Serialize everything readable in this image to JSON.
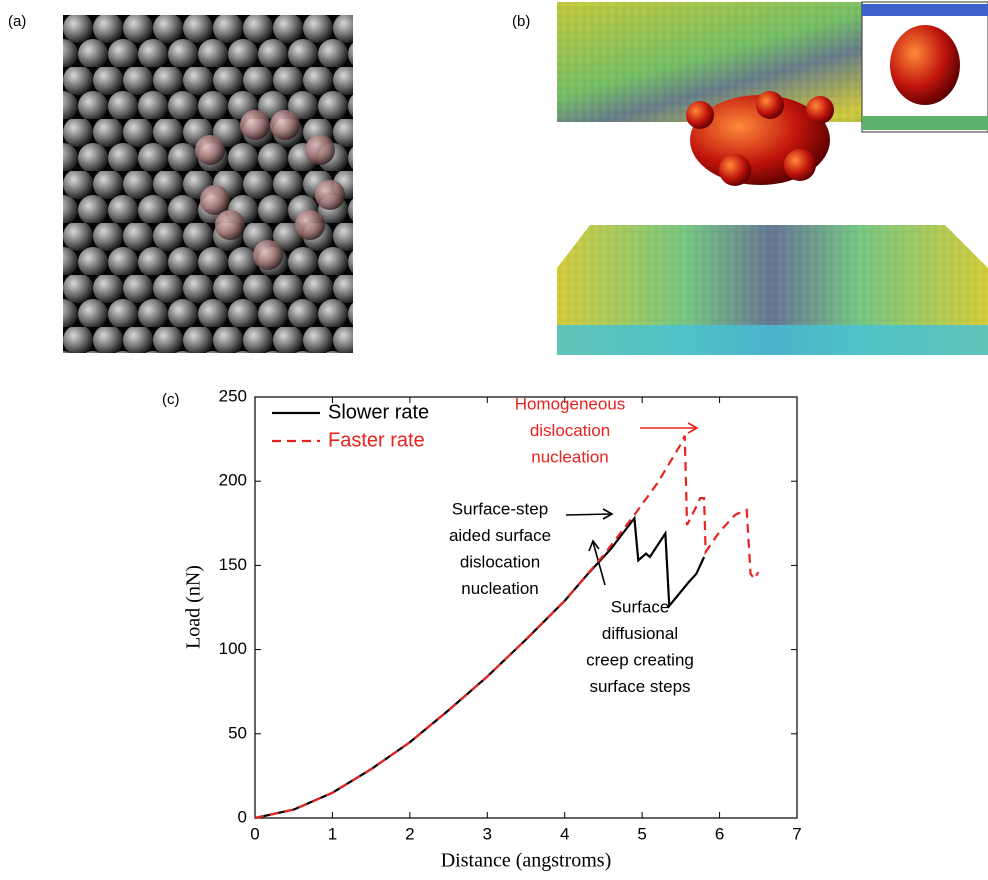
{
  "panel_labels": [
    "(a)",
    "(b)",
    "(c)"
  ],
  "chart_data": {
    "type": "line",
    "xlabel": "Distance (angstroms)",
    "ylabel": "Load (nN)",
    "xlim": [
      0,
      7
    ],
    "xticks": [
      0,
      1,
      2,
      3,
      4,
      5,
      6,
      7
    ],
    "ylim": [
      0,
      250
    ],
    "yticks": [
      0,
      50,
      100,
      150,
      200,
      250
    ],
    "legend": "upper-left",
    "series": [
      {
        "name": "Slower rate",
        "color": "#000000",
        "dash": false,
        "x": [
          0,
          0.5,
          1,
          1.5,
          2,
          2.5,
          3,
          3.5,
          4,
          4.3,
          4.6,
          4.9,
          4.95,
          5.05,
          5.1,
          5.3,
          5.35,
          5.6,
          5.7,
          5.8
        ],
        "values": [
          0,
          5,
          15,
          29,
          45,
          64,
          84,
          106,
          129,
          145,
          160,
          178,
          153,
          157,
          155,
          169,
          126,
          140,
          145,
          155
        ]
      },
      {
        "name": "Faster rate",
        "color": "#e8231f",
        "dash": true,
        "x": [
          0,
          0.5,
          1,
          1.5,
          2,
          2.5,
          3,
          3.5,
          4,
          4.5,
          4.9,
          5.2,
          5.5,
          5.55,
          5.58,
          5.7,
          5.75,
          5.8,
          5.82,
          6.0,
          6.2,
          6.25,
          6.35,
          6.4,
          6.45,
          6.5
        ],
        "values": [
          0,
          5,
          15,
          29,
          45,
          64,
          84,
          106,
          129,
          156,
          180,
          199,
          222,
          227,
          174,
          185,
          190,
          190,
          158,
          170,
          180,
          181,
          183,
          145,
          142,
          146
        ]
      }
    ],
    "annotations": [
      {
        "lines": [
          "Homogeneous",
          "dislocation",
          "nucleation"
        ],
        "color": "#e8231f"
      },
      {
        "lines": [
          "Surface-step",
          "aided surface",
          "dislocation",
          "nucleation"
        ],
        "color": "#000000"
      },
      {
        "lines": [
          "Surface",
          "diffusional",
          "creep creating",
          "surface steps"
        ],
        "color": "#000000"
      }
    ]
  }
}
